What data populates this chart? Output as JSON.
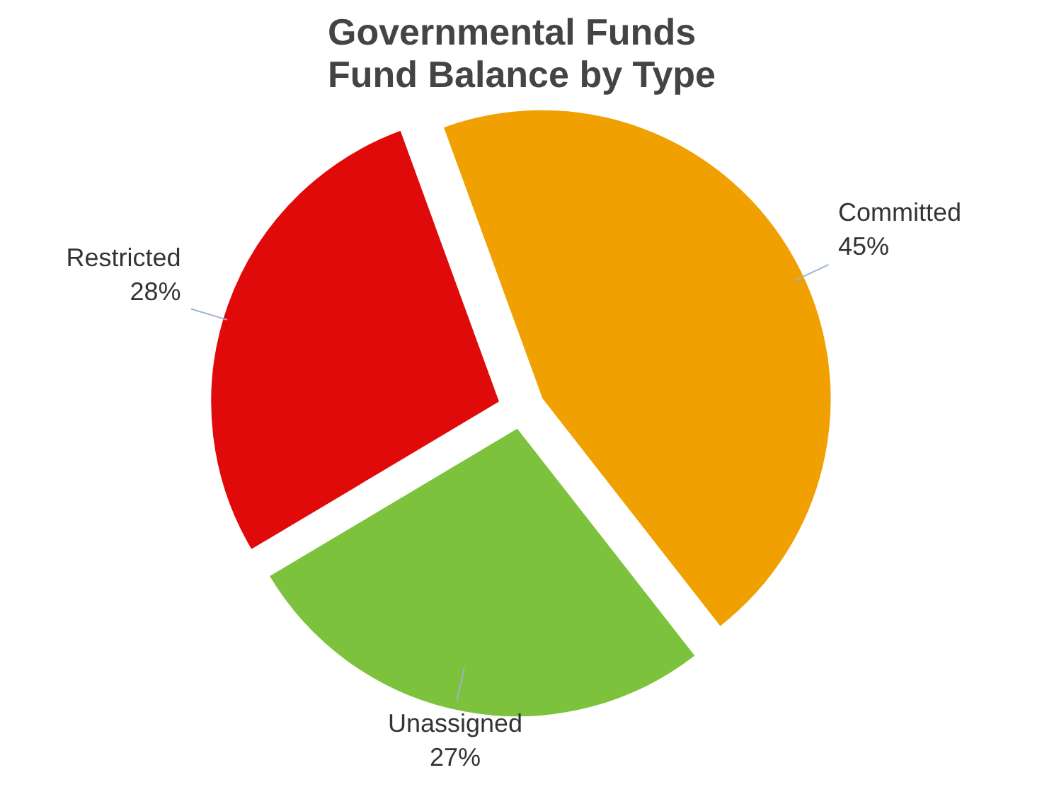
{
  "chart_data": {
    "type": "pie",
    "title": "Governmental Funds\nFund Balance by Type",
    "categories": [
      "Committed",
      "Unassigned",
      "Restricted"
    ],
    "values": [
      45,
      27,
      28
    ],
    "colors": [
      "#f0a000",
      "#7cc23c",
      "#e00a0a"
    ],
    "value_labels": [
      "45%",
      "27%",
      "28%"
    ]
  }
}
